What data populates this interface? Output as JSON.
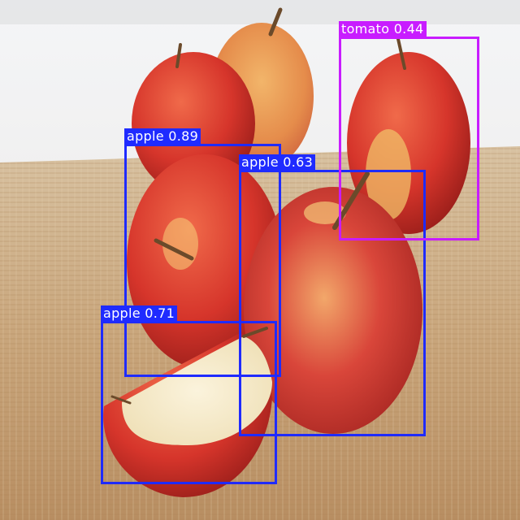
{
  "colors": {
    "apple_box": "#1f2bff",
    "tomato_box": "#c81cff",
    "label_text": "#ffffff"
  },
  "detections": [
    {
      "label": "apple 0.89",
      "class": "apple",
      "confidence": 0.89
    },
    {
      "label": "apple 0.63",
      "class": "apple",
      "confidence": 0.63
    },
    {
      "label": "apple 0.71",
      "class": "apple",
      "confidence": 0.71
    },
    {
      "label": "tomato 0.44",
      "class": "tomato",
      "confidence": 0.44
    }
  ]
}
